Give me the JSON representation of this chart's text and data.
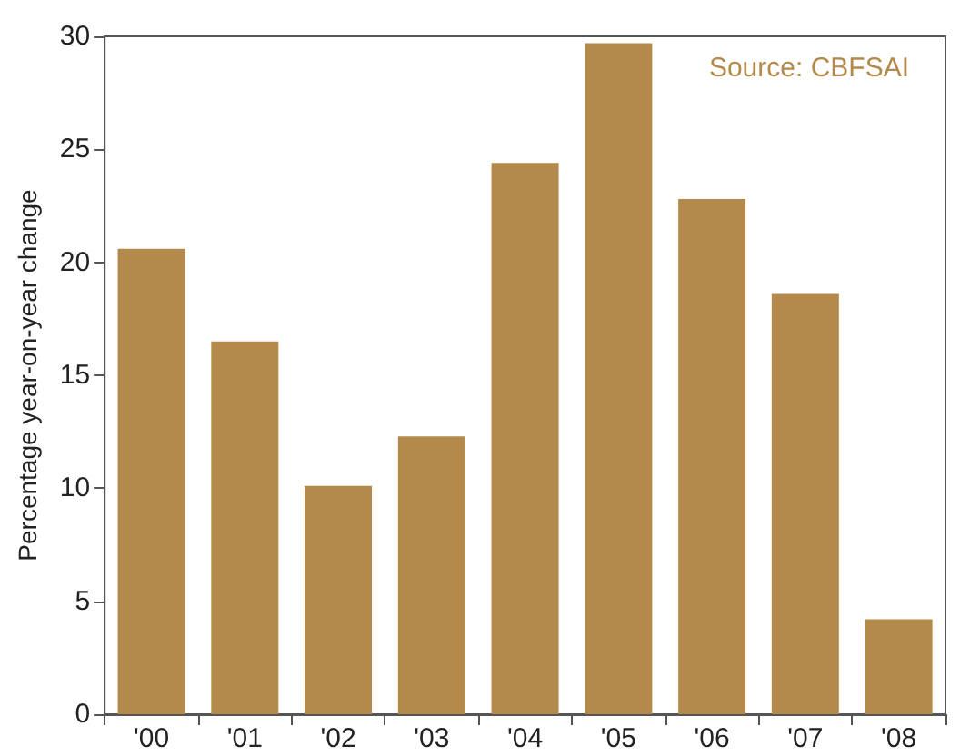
{
  "chart_data": {
    "type": "bar",
    "ylabel": "Percentage year-on-year change",
    "categories": [
      "'00",
      "'01",
      "'02",
      "'03",
      "'04",
      "'05",
      "'06",
      "'07",
      "'08"
    ],
    "values": [
      20.6,
      16.5,
      10.1,
      12.3,
      24.4,
      29.7,
      22.8,
      18.6,
      4.2
    ],
    "color": "#b38a4b",
    "ylim": [
      0,
      30
    ],
    "yticks": [
      0,
      5,
      10,
      15,
      20,
      25,
      30
    ],
    "grid": false,
    "annotations": [
      "Source: CBFSAI"
    ]
  }
}
